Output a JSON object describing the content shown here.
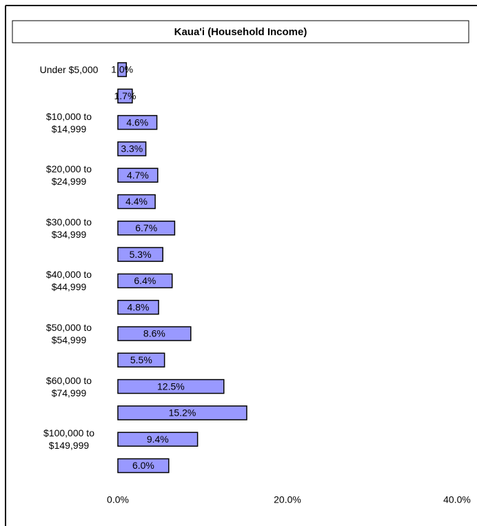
{
  "chart_data": {
    "type": "bar",
    "orientation": "horizontal",
    "title": "Kaua'i (Household Income)",
    "categories": [
      "Under $5,000",
      null,
      "$10,000 to $14,999",
      null,
      "$20,000 to $24,999",
      null,
      "$30,000 to $34,999",
      null,
      "$40,000 to $44,999",
      null,
      "$50,000 to $54,999",
      null,
      "$60,000 to $74,999",
      null,
      "$100,000 to $149,999",
      null
    ],
    "values": [
      1.0,
      1.7,
      4.6,
      3.3,
      4.7,
      4.4,
      6.7,
      5.3,
      6.4,
      4.8,
      8.6,
      5.5,
      12.5,
      15.2,
      9.4,
      6.0
    ],
    "value_labels": [
      "1.0%",
      "1.7%",
      "4.6%",
      "3.3%",
      "4.7%",
      "4.4%",
      "6.7%",
      "5.3%",
      "6.4%",
      "4.8%",
      "8.6%",
      "5.5%",
      "12.5%",
      "15.2%",
      "9.4%",
      "6.0%"
    ],
    "color": "#9999ff",
    "xlim": [
      0,
      40
    ],
    "xticks": [
      {
        "value": 0,
        "label": "0.0%"
      },
      {
        "value": 20,
        "label": "20.0%"
      },
      {
        "value": 40,
        "label": "40.0%"
      }
    ]
  }
}
